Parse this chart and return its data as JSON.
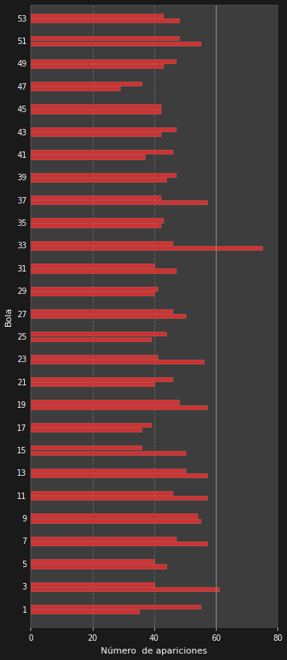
{
  "title": "",
  "xlabel": "Número  de apariciones",
  "ylabel": "Bola",
  "background_color": "#3d3d3d",
  "outer_bg": "#1a1a1a",
  "bar_color": "#cc3333",
  "bar_edge_color": "#dd5555",
  "xlim": [
    0,
    80
  ],
  "xticks": [
    0,
    20,
    40,
    60,
    80
  ],
  "grid_color": "#777777",
  "numbers": [
    1,
    3,
    5,
    7,
    9,
    11,
    13,
    15,
    17,
    19,
    21,
    23,
    25,
    27,
    29,
    31,
    33,
    35,
    37,
    39,
    41,
    43,
    45,
    47,
    49,
    51,
    53
  ],
  "values": [
    [
      35,
      55
    ],
    [
      61,
      40
    ],
    [
      44,
      40
    ],
    [
      57,
      47
    ],
    [
      55,
      54
    ],
    [
      57,
      46
    ],
    [
      57,
      50
    ],
    [
      50,
      36
    ],
    [
      36,
      39
    ],
    [
      57,
      48
    ],
    [
      40,
      46
    ],
    [
      56,
      41
    ],
    [
      39,
      44
    ],
    [
      50,
      46
    ],
    [
      40,
      41
    ],
    [
      47,
      40
    ],
    [
      75,
      46
    ],
    [
      42,
      43
    ],
    [
      57,
      42
    ],
    [
      44,
      47
    ],
    [
      37,
      46
    ],
    [
      42,
      47
    ],
    [
      42,
      42
    ],
    [
      29,
      36
    ],
    [
      43,
      47
    ],
    [
      55,
      48
    ],
    [
      48,
      43
    ]
  ],
  "font_color": "white",
  "label_fontsize": 8,
  "tick_fontsize": 7,
  "dpi": 100,
  "figwidth": 3.59,
  "figheight": 8.24,
  "vline_x": 60,
  "vline_color": "#888888"
}
